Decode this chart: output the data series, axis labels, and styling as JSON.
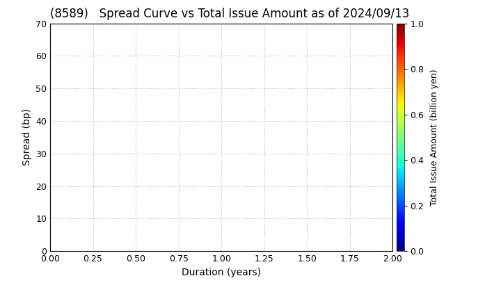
{
  "title": "(8589)   Spread Curve vs Total Issue Amount as of 2024/09/13",
  "xlabel": "Duration (years)",
  "ylabel": "Spread (bp)",
  "colorbar_label": "Total Issue Amount (billion yen)",
  "xlim": [
    0.0,
    2.0
  ],
  "ylim": [
    0,
    70
  ],
  "xticks": [
    0.0,
    0.25,
    0.5,
    0.75,
    1.0,
    1.25,
    1.5,
    1.75,
    2.0
  ],
  "yticks": [
    0,
    10,
    20,
    30,
    40,
    50,
    60,
    70
  ],
  "colorbar_ticks": [
    0.0,
    0.2,
    0.4,
    0.6,
    0.8,
    1.0
  ],
  "cmap": "jet",
  "grid_color": "#bbbbbb",
  "background_color": "#ffffff",
  "title_fontsize": 12,
  "axis_label_fontsize": 10,
  "tick_fontsize": 9
}
